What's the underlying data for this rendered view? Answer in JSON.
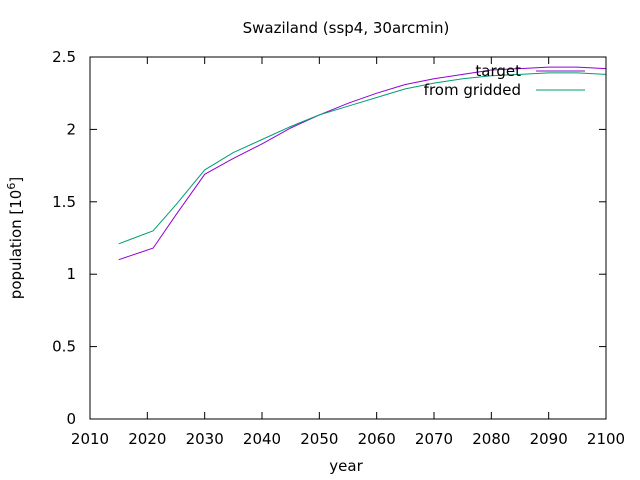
{
  "chart_data": {
    "type": "line",
    "title": "Swaziland (ssp4, 30arcmin)",
    "xlabel": "year",
    "ylabel_base": "population [10",
    "ylabel_exp": "6",
    "ylabel_close": "]",
    "xlim": [
      2010,
      2100
    ],
    "ylim": [
      0,
      2.5
    ],
    "xticks": [
      2010,
      2020,
      2030,
      2040,
      2050,
      2060,
      2070,
      2080,
      2090,
      2100
    ],
    "yticks": [
      0,
      0.5,
      1,
      1.5,
      2,
      2.5
    ],
    "ytick_labels": [
      "0",
      "0.5",
      "1",
      "1.5",
      "2",
      "2.5"
    ],
    "legend_position": "top-right",
    "series": [
      {
        "name": "target",
        "color": "#9400d3",
        "x": [
          2015,
          2021,
          2025,
          2030,
          2035,
          2040,
          2045,
          2050,
          2055,
          2060,
          2065,
          2070,
          2075,
          2080,
          2085,
          2090,
          2095,
          2100
        ],
        "y": [
          1.1,
          1.18,
          1.41,
          1.69,
          1.8,
          1.9,
          2.01,
          2.1,
          2.18,
          2.25,
          2.31,
          2.35,
          2.38,
          2.41,
          2.42,
          2.43,
          2.43,
          2.42
        ]
      },
      {
        "name": "from gridded",
        "color": "#009e73",
        "x": [
          2015,
          2021,
          2025,
          2030,
          2035,
          2040,
          2045,
          2050,
          2055,
          2060,
          2065,
          2070,
          2075,
          2080,
          2085,
          2090,
          2095,
          2100
        ],
        "y": [
          1.21,
          1.3,
          1.48,
          1.72,
          1.84,
          1.93,
          2.02,
          2.1,
          2.16,
          2.22,
          2.28,
          2.32,
          2.35,
          2.37,
          2.38,
          2.39,
          2.39,
          2.38
        ]
      }
    ]
  }
}
